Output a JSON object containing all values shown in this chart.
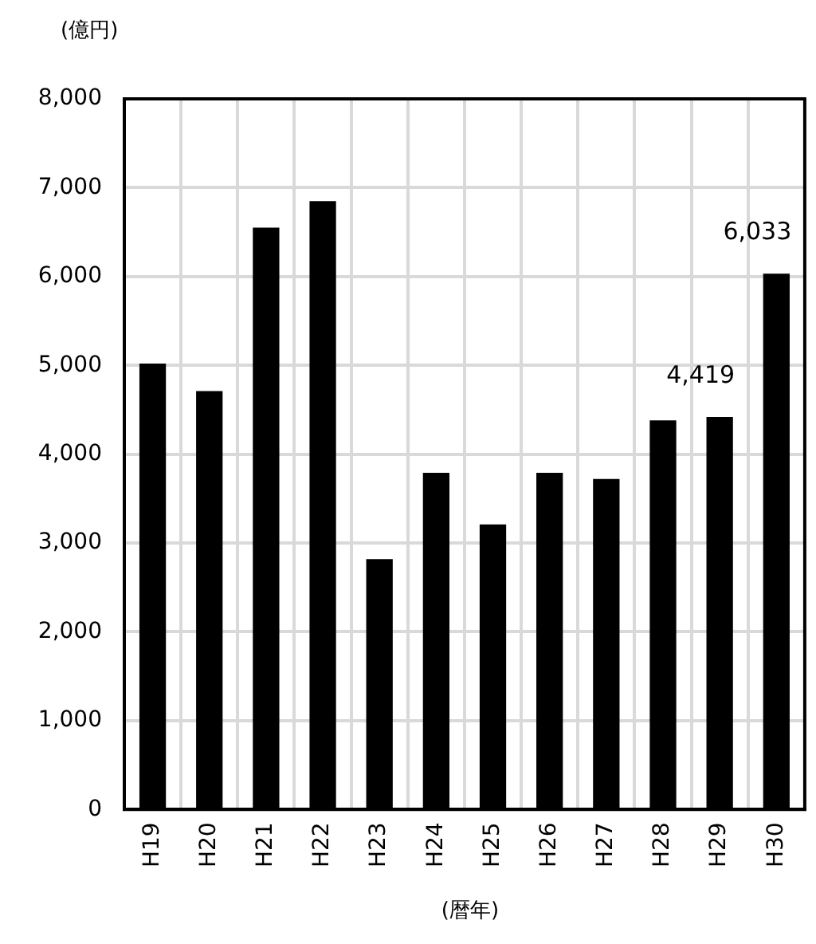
{
  "chart_data": {
    "type": "bar",
    "xlabel": "(暦年)",
    "ylabel": "(億円)",
    "categories": [
      "H19",
      "H20",
      "H21",
      "H22",
      "H23",
      "H24",
      "H25",
      "H26",
      "H27",
      "H28",
      "H29",
      "H30"
    ],
    "values": [
      5020,
      4710,
      6550,
      6850,
      2820,
      3790,
      3210,
      3790,
      3720,
      4380,
      4419,
      6033
    ],
    "value_labels": [
      null,
      null,
      null,
      null,
      null,
      null,
      null,
      null,
      null,
      null,
      "4,419",
      "6,033"
    ],
    "color": "#000000",
    "ylim": [
      0,
      8000
    ],
    "yticks": [
      0,
      {
        "value": 1000,
        "label": "1,000"
      },
      {
        "value": 2000,
        "label": "2,000"
      },
      {
        "value": 3000,
        "label": "3,000"
      },
      {
        "value": 4000,
        "label": "4,000"
      },
      {
        "value": 5000,
        "label": "5,000"
      },
      {
        "value": 6000,
        "label": "6,000"
      },
      {
        "value": 7000,
        "label": "7,000"
      },
      {
        "value": 8000,
        "label": "8,000"
      }
    ],
    "grid": true,
    "legend": false
  }
}
